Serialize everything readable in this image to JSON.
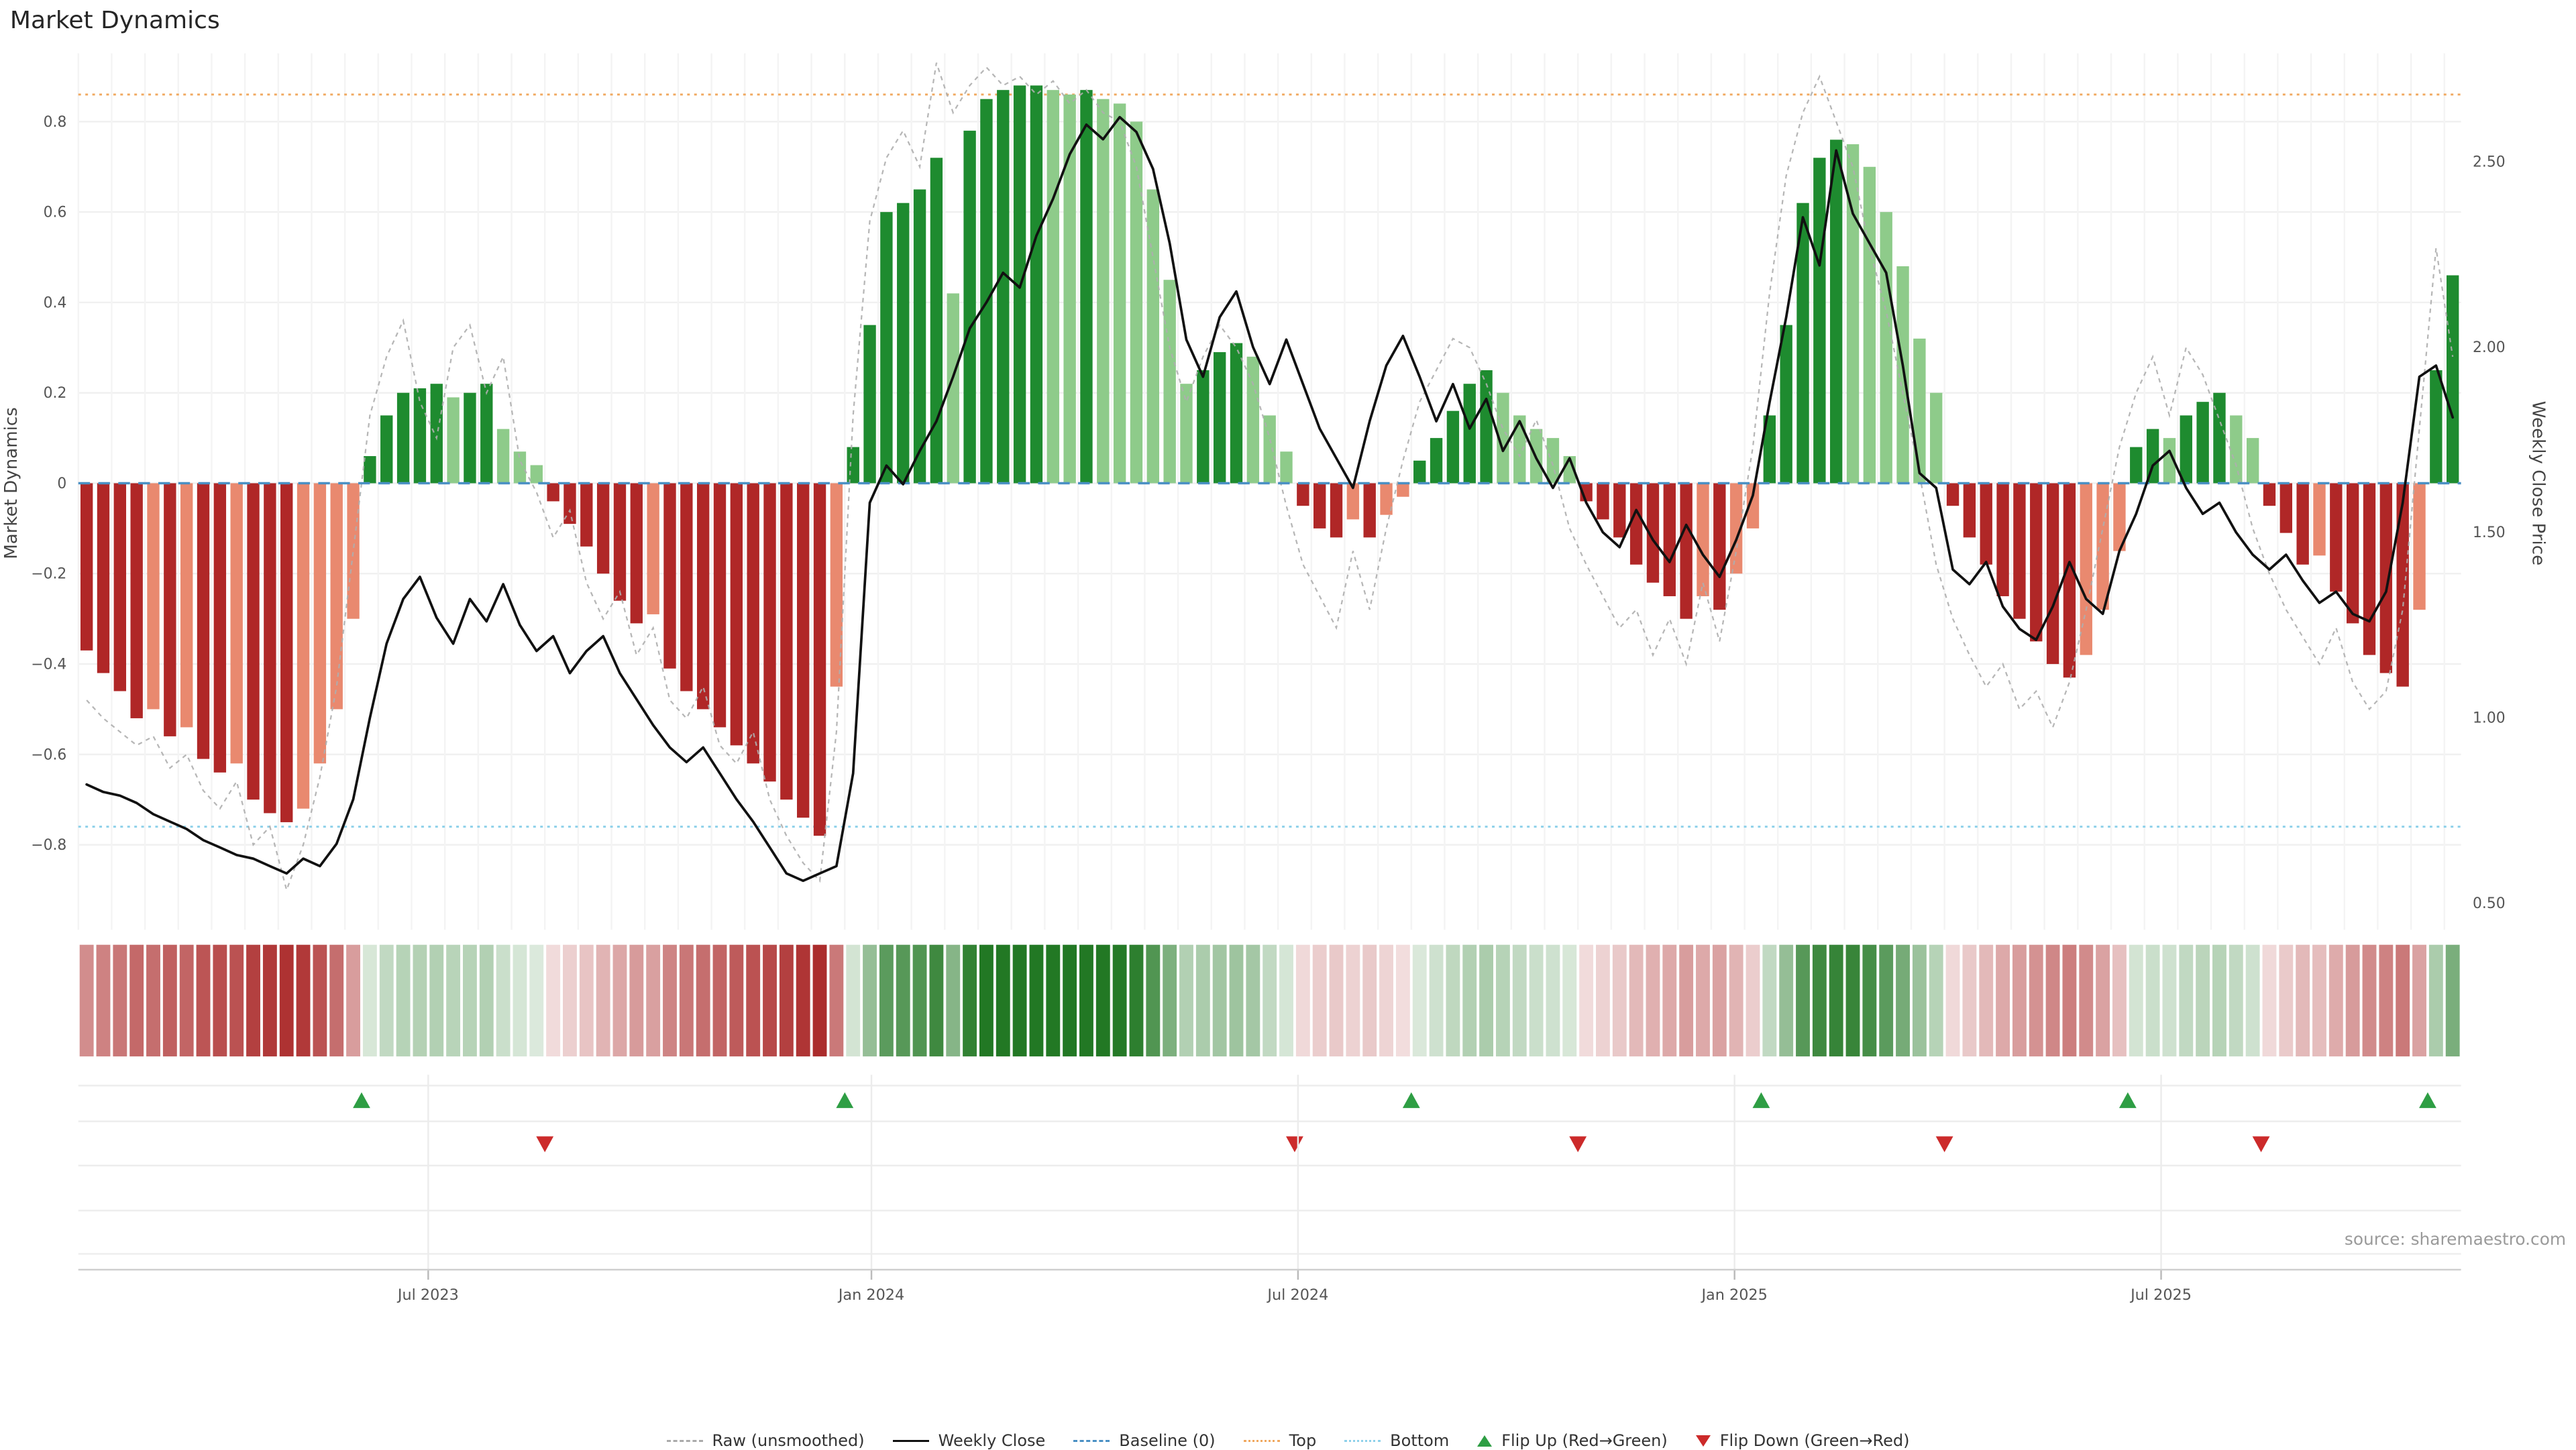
{
  "title": "Market Dynamics",
  "source": "source: sharemaestro.com",
  "axes": {
    "left_label": "Market Dynamics",
    "right_label": "Weekly Close Price",
    "left_ticks": [
      {
        "v": 0.8,
        "label": "0.8"
      },
      {
        "v": 0.6,
        "label": "0.6"
      },
      {
        "v": 0.4,
        "label": "0.4"
      },
      {
        "v": 0.2,
        "label": "0.2"
      },
      {
        "v": 0.0,
        "label": "0"
      },
      {
        "v": -0.2,
        "label": "−0.2"
      },
      {
        "v": -0.4,
        "label": "−0.4"
      },
      {
        "v": -0.6,
        "label": "−0.6"
      },
      {
        "v": -0.8,
        "label": "−0.8"
      }
    ],
    "right_ticks": [
      {
        "v": 2.5,
        "label": "2.50"
      },
      {
        "v": 2.0,
        "label": "2.00"
      },
      {
        "v": 1.5,
        "label": "1.50"
      },
      {
        "v": 1.0,
        "label": "1.00"
      },
      {
        "v": 0.5,
        "label": "0.50"
      }
    ],
    "x_ticks": [
      {
        "label": "Jul 2023",
        "week": 20.5
      },
      {
        "label": "Jan 2024",
        "week": 47.1
      },
      {
        "label": "Jul 2024",
        "week": 72.7
      },
      {
        "label": "Jan 2025",
        "week": 98.9
      },
      {
        "label": "Jul 2025",
        "week": 124.5
      }
    ]
  },
  "legend": {
    "items": [
      {
        "label": "Raw (unsmoothed)",
        "swatch": "dashed-gray-line"
      },
      {
        "label": "Weekly Close",
        "swatch": "solid-black-line"
      },
      {
        "label": "Baseline (0)",
        "swatch": "dashed-blue-line"
      },
      {
        "label": "Top",
        "swatch": "dotted-orange-line"
      },
      {
        "label": "Bottom",
        "swatch": "dotted-lightblue-line"
      },
      {
        "label": "Flip Up (Red→Green)",
        "swatch": "green-up-triangle"
      },
      {
        "label": "Flip Down (Green→Red)",
        "swatch": "red-down-triangle"
      }
    ]
  },
  "colors": {
    "bar_strong_positive": "#1e8b2f",
    "bar_weak_positive": "#8ecb8a",
    "bar_strong_negative": "#b02727",
    "bar_weak_negative": "#e9896f",
    "weekly_close_line": "#111111",
    "raw_line": "#aeaeae",
    "baseline": "#4a90c4",
    "top_line": "#f0a85f",
    "bottom_line": "#8ed1ea",
    "flip_up": "#2e9e44",
    "flip_down": "#cc2a2a",
    "heatmap_positive": "34,120,36",
    "heatmap_negative": "165,28,28",
    "grid": "#f0f0f0",
    "axis_text": "#555555"
  },
  "chart_data": {
    "type": "bar",
    "title": "Market Dynamics",
    "description": "Weekly market-dynamics oscillator bars (left axis) with raw unsmoothed series, weekly close price line (right axis), color heatmap strip, and flip up/down regime markers",
    "x_unit": "week",
    "n_weeks": 143,
    "x_tick_labels": [
      "Jul 2023",
      "Jan 2024",
      "Jul 2024",
      "Jan 2025",
      "Jul 2025"
    ],
    "ylim_left": [
      -0.95,
      0.95
    ],
    "ylim_right": [
      0.45,
      2.7
    ],
    "baseline_value": 0,
    "top_threshold": 0.86,
    "bottom_threshold": -0.76,
    "bars_market_dynamics": [
      -0.37,
      -0.42,
      -0.46,
      -0.52,
      -0.5,
      -0.56,
      -0.54,
      -0.61,
      -0.64,
      -0.62,
      -0.7,
      -0.73,
      -0.75,
      -0.72,
      -0.62,
      -0.5,
      -0.3,
      0.06,
      0.15,
      0.2,
      0.21,
      0.22,
      0.19,
      0.2,
      0.22,
      0.12,
      0.07,
      0.04,
      -0.04,
      -0.09,
      -0.14,
      -0.2,
      -0.26,
      -0.31,
      -0.29,
      -0.41,
      -0.46,
      -0.5,
      -0.54,
      -0.58,
      -0.62,
      -0.66,
      -0.7,
      -0.74,
      -0.78,
      -0.45,
      0.08,
      0.35,
      0.6,
      0.62,
      0.65,
      0.72,
      0.42,
      0.78,
      0.85,
      0.87,
      0.88,
      0.88,
      0.87,
      0.86,
      0.87,
      0.85,
      0.84,
      0.8,
      0.65,
      0.45,
      0.22,
      0.25,
      0.29,
      0.31,
      0.28,
      0.15,
      0.07,
      -0.05,
      -0.1,
      -0.12,
      -0.08,
      -0.12,
      -0.07,
      -0.03,
      0.05,
      0.1,
      0.16,
      0.22,
      0.25,
      0.2,
      0.15,
      0.12,
      0.1,
      0.06,
      -0.04,
      -0.08,
      -0.12,
      -0.18,
      -0.22,
      -0.25,
      -0.3,
      -0.25,
      -0.28,
      -0.2,
      -0.1,
      0.15,
      0.35,
      0.62,
      0.72,
      0.76,
      0.75,
      0.7,
      0.6,
      0.48,
      0.32,
      0.2,
      -0.05,
      -0.12,
      -0.18,
      -0.25,
      -0.3,
      -0.35,
      -0.4,
      -0.43,
      -0.38,
      -0.28,
      -0.15,
      0.08,
      0.12,
      0.1,
      0.15,
      0.18,
      0.2,
      0.15,
      0.1,
      -0.05,
      -0.11,
      -0.18,
      -0.16,
      -0.24,
      -0.31,
      -0.38,
      -0.42,
      -0.45,
      -0.28,
      0.25,
      0.46
    ],
    "line_raw_unsmoothed": [
      -0.48,
      -0.52,
      -0.55,
      -0.58,
      -0.56,
      -0.63,
      -0.6,
      -0.68,
      -0.72,
      -0.66,
      -0.8,
      -0.76,
      -0.9,
      -0.8,
      -0.65,
      -0.45,
      -0.15,
      0.15,
      0.28,
      0.36,
      0.18,
      0.1,
      0.3,
      0.35,
      0.2,
      0.28,
      0.05,
      -0.02,
      -0.12,
      -0.06,
      -0.22,
      -0.3,
      -0.24,
      -0.38,
      -0.32,
      -0.48,
      -0.52,
      -0.45,
      -0.58,
      -0.62,
      -0.55,
      -0.7,
      -0.78,
      -0.84,
      -0.88,
      -0.55,
      0.15,
      0.58,
      0.72,
      0.78,
      0.7,
      0.93,
      0.82,
      0.88,
      0.92,
      0.88,
      0.9,
      0.86,
      0.89,
      0.84,
      0.87,
      0.82,
      0.8,
      0.7,
      0.5,
      0.3,
      0.18,
      0.28,
      0.35,
      0.3,
      0.22,
      0.1,
      -0.05,
      -0.18,
      -0.25,
      -0.32,
      -0.15,
      -0.28,
      -0.1,
      0.05,
      0.18,
      0.25,
      0.32,
      0.3,
      0.22,
      0.12,
      0.06,
      0.14,
      0.04,
      -0.1,
      -0.18,
      -0.25,
      -0.32,
      -0.28,
      -0.38,
      -0.3,
      -0.4,
      -0.22,
      -0.35,
      -0.15,
      0.08,
      0.42,
      0.68,
      0.82,
      0.9,
      0.8,
      0.7,
      0.52,
      0.38,
      0.2,
      0.02,
      -0.18,
      -0.3,
      -0.38,
      -0.45,
      -0.4,
      -0.5,
      -0.46,
      -0.54,
      -0.44,
      -0.28,
      -0.1,
      0.08,
      0.2,
      0.28,
      0.15,
      0.3,
      0.24,
      0.14,
      0.04,
      -0.1,
      -0.2,
      -0.28,
      -0.34,
      -0.4,
      -0.32,
      -0.44,
      -0.5,
      -0.46,
      -0.28,
      0.12,
      0.52,
      0.28
    ],
    "line_weekly_close": [
      0.82,
      0.8,
      0.79,
      0.77,
      0.74,
      0.72,
      0.7,
      0.67,
      0.65,
      0.63,
      0.62,
      0.6,
      0.58,
      0.62,
      0.6,
      0.66,
      0.78,
      1.0,
      1.2,
      1.32,
      1.38,
      1.27,
      1.2,
      1.32,
      1.26,
      1.36,
      1.25,
      1.18,
      1.22,
      1.12,
      1.18,
      1.22,
      1.12,
      1.05,
      0.98,
      0.92,
      0.88,
      0.92,
      0.85,
      0.78,
      0.72,
      0.65,
      0.58,
      0.56,
      0.58,
      0.6,
      0.85,
      1.58,
      1.68,
      1.63,
      1.72,
      1.8,
      1.92,
      2.05,
      2.12,
      2.2,
      2.16,
      2.3,
      2.4,
      2.52,
      2.6,
      2.56,
      2.62,
      2.58,
      2.48,
      2.28,
      2.02,
      1.92,
      2.08,
      2.15,
      2.0,
      1.9,
      2.02,
      1.9,
      1.78,
      1.7,
      1.62,
      1.8,
      1.95,
      2.03,
      1.92,
      1.8,
      1.9,
      1.78,
      1.86,
      1.72,
      1.8,
      1.7,
      1.62,
      1.7,
      1.58,
      1.5,
      1.46,
      1.56,
      1.48,
      1.42,
      1.52,
      1.44,
      1.38,
      1.48,
      1.6,
      1.85,
      2.08,
      2.35,
      2.22,
      2.53,
      2.36,
      2.28,
      2.2,
      1.95,
      1.66,
      1.62,
      1.4,
      1.36,
      1.42,
      1.3,
      1.24,
      1.21,
      1.3,
      1.42,
      1.32,
      1.28,
      1.45,
      1.55,
      1.68,
      1.72,
      1.62,
      1.55,
      1.58,
      1.5,
      1.44,
      1.4,
      1.44,
      1.37,
      1.31,
      1.34,
      1.28,
      1.26,
      1.34,
      1.58,
      1.92,
      1.95,
      1.81
    ],
    "flip_up_weeks": [
      17,
      46,
      80,
      101,
      123,
      141
    ],
    "flip_down_weeks": [
      28,
      73,
      90,
      112,
      131
    ],
    "legend_position": "bottom-center",
    "grid": "on"
  }
}
